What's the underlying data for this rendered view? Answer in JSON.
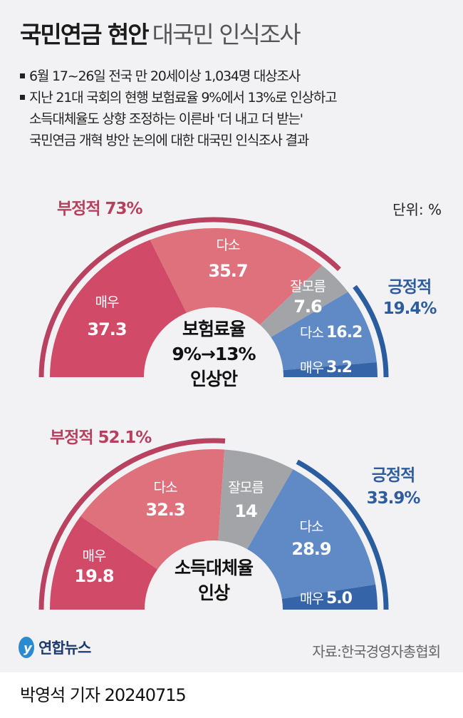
{
  "header": {
    "title_bold": "국민연금 현안",
    "title_light": "대국민 인식조사"
  },
  "bullets": [
    {
      "lines": [
        "6월 17~26일 전국 만 20세이상 1,034명 대상조사"
      ]
    },
    {
      "lines": [
        "지난 21대 국회의 현행 보험료율 9%에서 13%로 인상하고",
        "소득대체율도 상향 조정하는 이른바 '더 내고 더 받는'",
        "국민연금 개혁 방안 논의에 대한 대국민  인식조사 결과"
      ]
    }
  ],
  "unit": "단위: %",
  "colors": {
    "neg_strong": "#d14a68",
    "neg_some": "#de717b",
    "unknown": "#a3a4a8",
    "pos_some": "#5f8ac6",
    "pos_strong": "#3565a8",
    "neg_ring": "#b84260",
    "pos_ring": "#2a5da0"
  },
  "chart_data": [
    {
      "type": "pie",
      "shape": "half-donut",
      "center_label": [
        "보험료율",
        "9%→13%",
        "인상안"
      ],
      "negative_label": "부정적 73%",
      "positive_label": [
        "긍정적",
        "19.4%"
      ],
      "slices": [
        {
          "name": "매우",
          "value": 37.3,
          "label": "37.3",
          "group": "negative"
        },
        {
          "name": "다소",
          "value": 35.7,
          "label": "35.7",
          "group": "negative"
        },
        {
          "name": "잘모름",
          "value": 7.6,
          "label": "7.6",
          "group": "unknown"
        },
        {
          "name": "다소",
          "value": 16.2,
          "label": "16.2",
          "group": "positive"
        },
        {
          "name": "매우",
          "value": 3.2,
          "label": "3.2",
          "group": "positive"
        }
      ]
    },
    {
      "type": "pie",
      "shape": "half-donut",
      "center_label": [
        "소득대체율",
        "인상"
      ],
      "negative_label": "부정적 52.1%",
      "positive_label": [
        "긍정적",
        "33.9%"
      ],
      "slices": [
        {
          "name": "매우",
          "value": 19.8,
          "label": "19.8",
          "group": "negative"
        },
        {
          "name": "다소",
          "value": 32.3,
          "label": "32.3",
          "group": "negative"
        },
        {
          "name": "잘모름",
          "value": 14,
          "label": "14",
          "group": "unknown"
        },
        {
          "name": "다소",
          "value": 28.9,
          "label": "28.9",
          "group": "positive"
        },
        {
          "name": "매우",
          "value": 5.0,
          "label": "5.0",
          "group": "positive"
        }
      ]
    }
  ],
  "footer": {
    "logo": "연합뉴스",
    "source": "자료:한국경영자총협회",
    "byline": "박영석 기자  20240715"
  }
}
